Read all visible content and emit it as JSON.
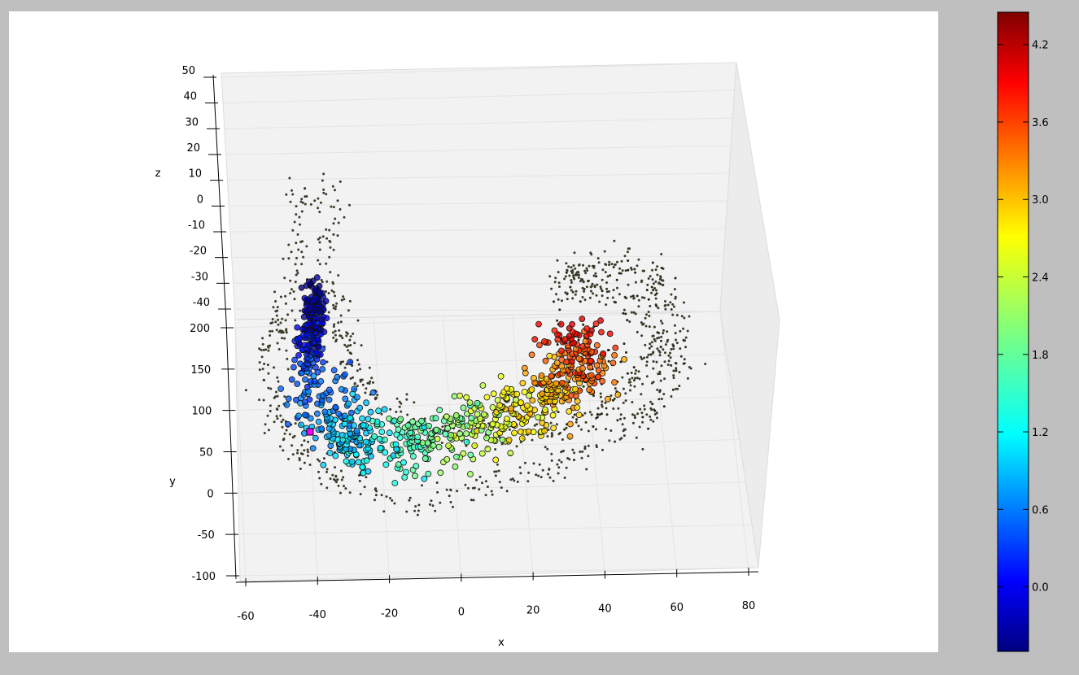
{
  "chart_data": {
    "type": "scatter",
    "projection": "3d",
    "title": "",
    "xlabel": "x",
    "ylabel": "y",
    "zlabel": "z",
    "xlim": [
      -60,
      80
    ],
    "ylim": [
      -100,
      200
    ],
    "zlim": [
      -40,
      50
    ],
    "x_ticks": [
      "-60",
      "-40",
      "-20",
      "0",
      "20",
      "40",
      "60",
      "80"
    ],
    "y_ticks": [
      "-100",
      "-50",
      "0",
      "50",
      "100",
      "150",
      "200"
    ],
    "z_ticks": [
      "-40",
      "-30",
      "-20",
      "-10",
      "0",
      "10",
      "20",
      "30",
      "40",
      "50"
    ],
    "grid": true,
    "colormap": "jet",
    "colorbar": {
      "range": [
        -0.5,
        4.45
      ],
      "ticks": [
        "0.0",
        "0.6",
        "1.2",
        "1.8",
        "2.4",
        "3.0",
        "3.6",
        "4.2"
      ]
    },
    "series": [
      {
        "role": "background point cloud (swiss roll)",
        "color": "#3a3a2a",
        "marker": "small dot"
      },
      {
        "role": "embedded sample points colored by parameter",
        "marker": "circle",
        "color_range": [
          -0.5,
          4.4
        ]
      },
      {
        "role": "selected point",
        "marker": "square",
        "color": "#ff00ff"
      }
    ]
  }
}
